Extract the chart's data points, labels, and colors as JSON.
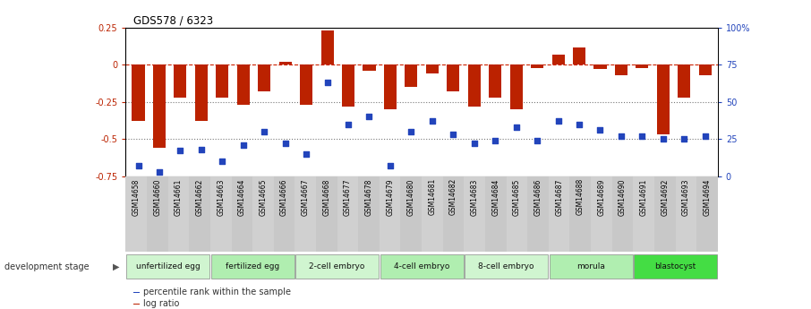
{
  "title": "GDS578 / 6323",
  "samples": [
    "GSM14658",
    "GSM14660",
    "GSM14661",
    "GSM14662",
    "GSM14663",
    "GSM14664",
    "GSM14665",
    "GSM14666",
    "GSM14667",
    "GSM14668",
    "GSM14677",
    "GSM14678",
    "GSM14679",
    "GSM14680",
    "GSM14681",
    "GSM14682",
    "GSM14683",
    "GSM14684",
    "GSM14685",
    "GSM14686",
    "GSM14687",
    "GSM14688",
    "GSM14689",
    "GSM14690",
    "GSM14691",
    "GSM14692",
    "GSM14693",
    "GSM14694"
  ],
  "log_ratio": [
    -0.38,
    -0.56,
    -0.22,
    -0.38,
    -0.22,
    -0.27,
    -0.18,
    0.02,
    -0.27,
    0.23,
    -0.28,
    -0.04,
    -0.3,
    -0.15,
    -0.06,
    -0.18,
    -0.28,
    -0.22,
    -0.3,
    -0.02,
    0.07,
    0.12,
    -0.03,
    -0.07,
    -0.02,
    -0.47,
    -0.22,
    -0.07
  ],
  "percentile": [
    7,
    3,
    17,
    18,
    10,
    21,
    30,
    22,
    15,
    63,
    35,
    40,
    7,
    30,
    37,
    28,
    22,
    24,
    33,
    24,
    37,
    35,
    31,
    27,
    27,
    25,
    25,
    27
  ],
  "stage_groups": [
    {
      "label": "unfertilized egg",
      "start": 0,
      "end": 4,
      "color": "#d0f5d0"
    },
    {
      "label": "fertilized egg",
      "start": 4,
      "end": 8,
      "color": "#b0eeb0"
    },
    {
      "label": "2-cell embryo",
      "start": 8,
      "end": 12,
      "color": "#d0f5d0"
    },
    {
      "label": "4-cell embryo",
      "start": 12,
      "end": 16,
      "color": "#b0eeb0"
    },
    {
      "label": "8-cell embryo",
      "start": 16,
      "end": 20,
      "color": "#d0f5d0"
    },
    {
      "label": "morula",
      "start": 20,
      "end": 24,
      "color": "#b0eeb0"
    },
    {
      "label": "blastocyst",
      "start": 24,
      "end": 28,
      "color": "#44dd44"
    }
  ],
  "bar_color": "#bb2200",
  "dot_color": "#2244bb",
  "ylim_left": [
    -0.75,
    0.25
  ],
  "ylim_right": [
    0,
    100
  ],
  "yticks_left": [
    -0.75,
    -0.5,
    -0.25,
    0.0,
    0.25
  ],
  "ytick_labels_left": [
    "-0.75",
    "-0.5",
    "-0.25",
    "0",
    "0.25"
  ],
  "yticks_right": [
    0,
    25,
    50,
    75,
    100
  ],
  "ytick_labels_right": [
    "0",
    "25",
    "50",
    "75",
    "100%"
  ],
  "hlines": [
    0.0,
    -0.25,
    -0.5
  ],
  "hline_styles": [
    "--",
    ":",
    ":"
  ],
  "hline_colors": [
    "#cc2200",
    "#777777",
    "#777777"
  ],
  "stage_label": "development stage",
  "legend_items": [
    {
      "label": "log ratio",
      "color": "#bb2200"
    },
    {
      "label": "percentile rank within the sample",
      "color": "#2244bb"
    }
  ]
}
